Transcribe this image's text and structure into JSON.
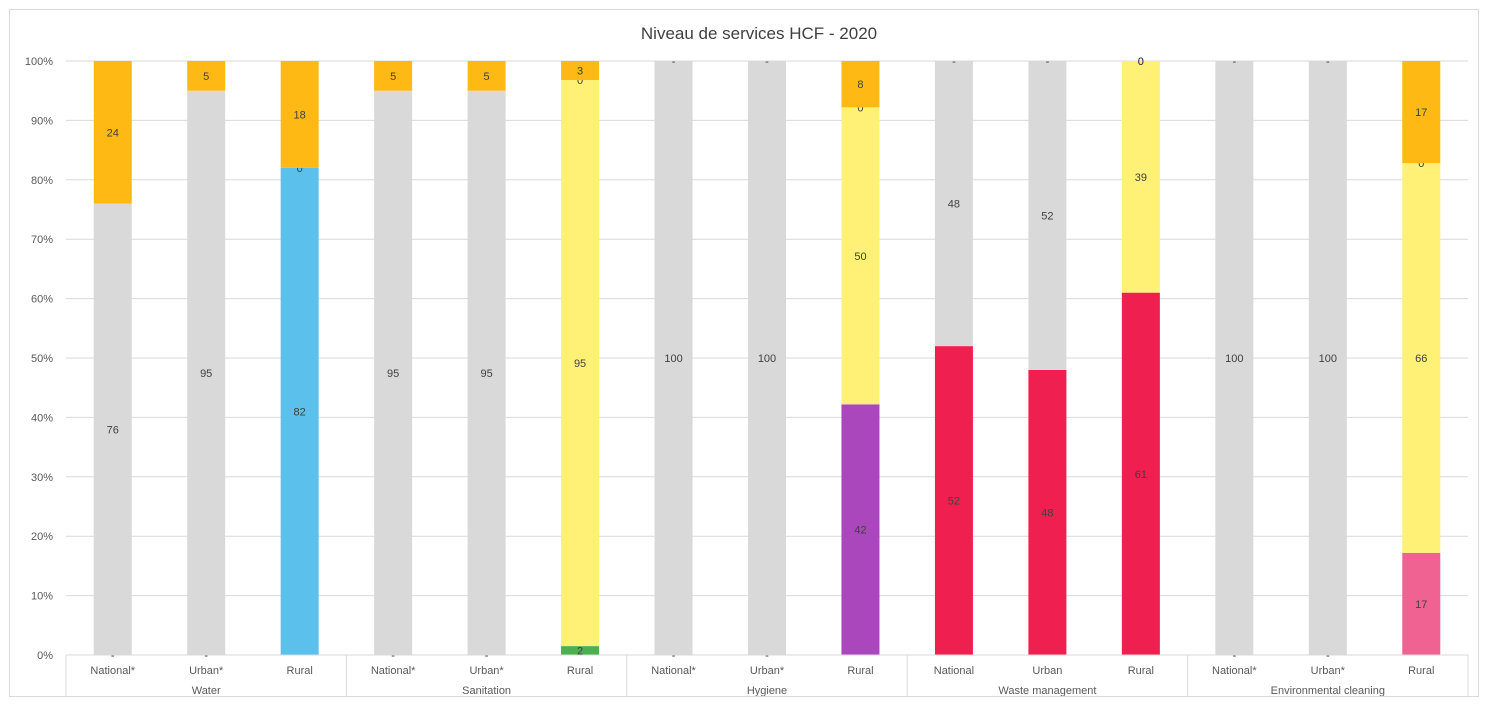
{
  "chart_data": {
    "type": "bar",
    "stacked": true,
    "title": "Niveau de services HCF - 2020",
    "y_ticks": [
      "0%",
      "10%",
      "20%",
      "30%",
      "40%",
      "50%",
      "60%",
      "70%",
      "80%",
      "90%",
      "100%"
    ],
    "ylim": [
      0,
      100
    ],
    "grid": true,
    "legend": "none",
    "groups": [
      {
        "name": "Water",
        "categories": [
          "National*",
          "Urban*",
          "Rural"
        ]
      },
      {
        "name": "Sanitation",
        "categories": [
          "National*",
          "Urban*",
          "Rural"
        ]
      },
      {
        "name": "Hygiene",
        "categories": [
          "National*",
          "Urban*",
          "Rural"
        ]
      },
      {
        "name": "Waste management",
        "categories": [
          "National",
          "Urban",
          "Rural"
        ]
      },
      {
        "name": "Environmental cleaning",
        "categories": [
          "National*",
          "Urban*",
          "Rural"
        ]
      }
    ],
    "bars": [
      {
        "group": "Water",
        "category": "National*",
        "segments": [
          {
            "value": 0,
            "label": "-",
            "color": "#4caf50"
          },
          {
            "value": 76,
            "label": "76",
            "color": "#d9d9d9"
          },
          {
            "value": 24,
            "label": "24",
            "color": "#ffb915"
          }
        ]
      },
      {
        "group": "Water",
        "category": "Urban*",
        "segments": [
          {
            "value": 0,
            "label": "-",
            "color": "#4caf50"
          },
          {
            "value": 95,
            "label": "95",
            "color": "#d9d9d9"
          },
          {
            "value": 5,
            "label": "5",
            "color": "#ffb915"
          }
        ]
      },
      {
        "group": "Water",
        "category": "Rural",
        "segments": [
          {
            "value": 82,
            "label": "82",
            "color": "#5bc0eb"
          },
          {
            "value": 0,
            "label": "0",
            "color": "#fff176"
          },
          {
            "value": 18,
            "label": "18",
            "color": "#ffb915"
          }
        ]
      },
      {
        "group": "Sanitation",
        "category": "National*",
        "segments": [
          {
            "value": 0,
            "label": "-",
            "color": "#4caf50"
          },
          {
            "value": 95,
            "label": "95",
            "color": "#d9d9d9"
          },
          {
            "value": 5,
            "label": "5",
            "color": "#ffb915"
          }
        ]
      },
      {
        "group": "Sanitation",
        "category": "Urban*",
        "segments": [
          {
            "value": 0,
            "label": "-",
            "color": "#4caf50"
          },
          {
            "value": 95,
            "label": "95",
            "color": "#d9d9d9"
          },
          {
            "value": 5,
            "label": "5",
            "color": "#ffb915"
          }
        ]
      },
      {
        "group": "Sanitation",
        "category": "Rural",
        "segments": [
          {
            "value": 1.5,
            "label": "2",
            "color": "#4caf50"
          },
          {
            "value": 95.3,
            "label": "95",
            "color": "#fff176"
          },
          {
            "value": 0,
            "label": "0",
            "color": "#fff176"
          },
          {
            "value": 3.2,
            "label": "3",
            "color": "#ffb915"
          }
        ]
      },
      {
        "group": "Hygiene",
        "category": "National*",
        "segments": [
          {
            "value": 0,
            "label": "-",
            "color": "#4caf50"
          },
          {
            "value": 100,
            "label": "100",
            "color": "#d9d9d9"
          },
          {
            "value": 0,
            "label": "-",
            "color": "#ffb915"
          }
        ]
      },
      {
        "group": "Hygiene",
        "category": "Urban*",
        "segments": [
          {
            "value": 0,
            "label": "-",
            "color": "#4caf50"
          },
          {
            "value": 100,
            "label": "100",
            "color": "#d9d9d9"
          },
          {
            "value": 0,
            "label": "-",
            "color": "#ffb915"
          }
        ]
      },
      {
        "group": "Hygiene",
        "category": "Rural",
        "segments": [
          {
            "value": 42.2,
            "label": "42",
            "color": "#ab47bc"
          },
          {
            "value": 50,
            "label": "50",
            "color": "#fff176"
          },
          {
            "value": 0,
            "label": "0",
            "color": "#fff176"
          },
          {
            "value": 7.8,
            "label": "8",
            "color": "#ffb915"
          }
        ]
      },
      {
        "group": "Waste management",
        "category": "National",
        "segments": [
          {
            "value": 52,
            "label": "52",
            "color": "#ef2050"
          },
          {
            "value": 48,
            "label": "48",
            "color": "#d9d9d9"
          },
          {
            "value": 0,
            "label": "-",
            "color": "#ffb915"
          }
        ]
      },
      {
        "group": "Waste management",
        "category": "Urban",
        "segments": [
          {
            "value": 48,
            "label": "48",
            "color": "#ef2050"
          },
          {
            "value": 52,
            "label": "52",
            "color": "#d9d9d9"
          },
          {
            "value": 0,
            "label": "-",
            "color": "#ffb915"
          }
        ]
      },
      {
        "group": "Waste management",
        "category": "Rural",
        "segments": [
          {
            "value": 61,
            "label": "61",
            "color": "#ef2050"
          },
          {
            "value": 39,
            "label": "39",
            "color": "#fff176"
          },
          {
            "value": 0,
            "label": "0",
            "color": "#ffb915"
          },
          {
            "value": 0,
            "label": "0",
            "color": "#ffb915"
          }
        ]
      },
      {
        "group": "Environmental cleaning",
        "category": "National*",
        "segments": [
          {
            "value": 0,
            "label": "-",
            "color": "#4caf50"
          },
          {
            "value": 100,
            "label": "100",
            "color": "#d9d9d9"
          },
          {
            "value": 0,
            "label": "-",
            "color": "#ffb915"
          }
        ]
      },
      {
        "group": "Environmental cleaning",
        "category": "Urban*",
        "segments": [
          {
            "value": 0,
            "label": "-",
            "color": "#4caf50"
          },
          {
            "value": 100,
            "label": "100",
            "color": "#d9d9d9"
          },
          {
            "value": 0,
            "label": "-",
            "color": "#ffb915"
          }
        ]
      },
      {
        "group": "Environmental cleaning",
        "category": "Rural",
        "segments": [
          {
            "value": 17.2,
            "label": "17",
            "color": "#f06292"
          },
          {
            "value": 65.6,
            "label": "66",
            "color": "#fff176"
          },
          {
            "value": 0,
            "label": "0",
            "color": "#fff176"
          },
          {
            "value": 17.2,
            "label": "17",
            "color": "#ffb915"
          }
        ]
      }
    ]
  }
}
